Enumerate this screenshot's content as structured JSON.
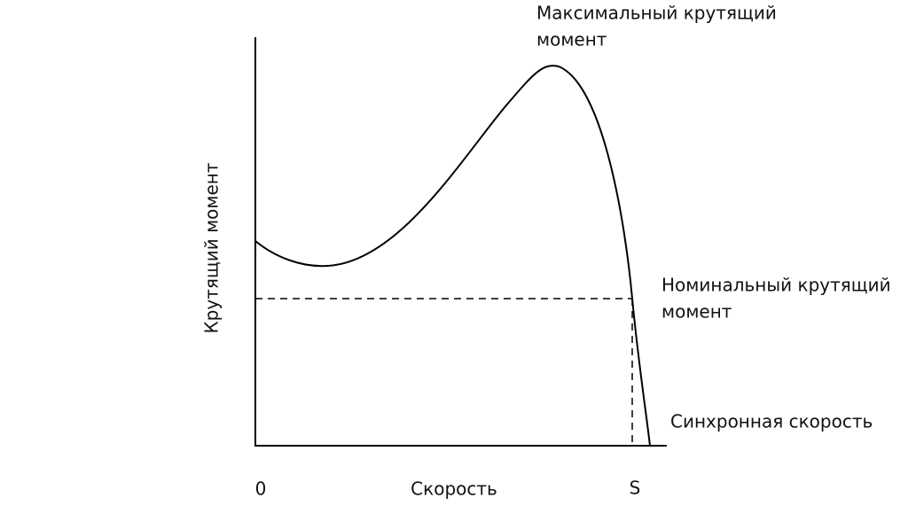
{
  "axes": {
    "y_label": "Крутящий момент",
    "x_label": "Скорость",
    "x_origin": "0",
    "x_end": "S"
  },
  "annotations": [
    {
      "lines": [
        "Максимальный крутящий",
        "момент"
      ]
    },
    {
      "lines": [
        "Номинальный крутящий",
        "момент"
      ]
    },
    {
      "lines": [
        "Синхронная скорость"
      ]
    }
  ]
}
